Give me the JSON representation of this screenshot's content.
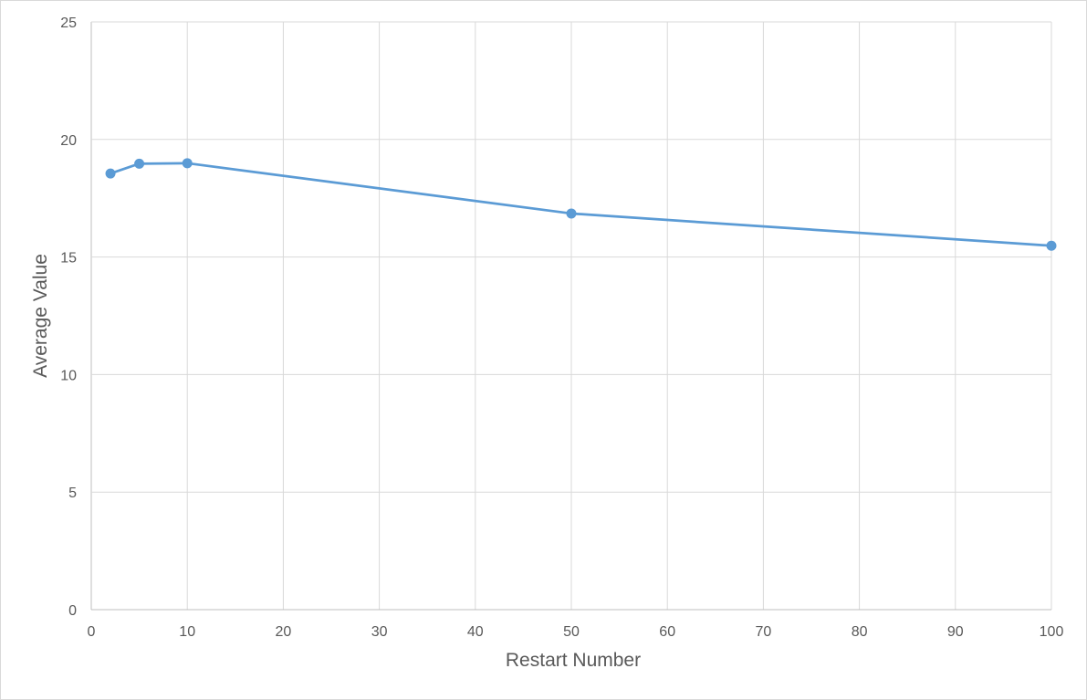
{
  "chart_data": {
    "type": "scatter",
    "title": "",
    "xlabel": "Restart Number",
    "ylabel": "Average Value",
    "xlim": [
      0,
      100
    ],
    "ylim": [
      0,
      25
    ],
    "xticks": [
      0,
      10,
      20,
      30,
      40,
      50,
      60,
      70,
      80,
      90,
      100
    ],
    "yticks": [
      0,
      5,
      10,
      15,
      20,
      25
    ],
    "grid": true,
    "legend": "none",
    "line_color": "#5b9bd5",
    "series": [
      {
        "x": [
          2,
          5,
          10,
          50,
          100
        ],
        "y": [
          18.55,
          18.97,
          18.99,
          16.85,
          15.48
        ]
      }
    ]
  }
}
